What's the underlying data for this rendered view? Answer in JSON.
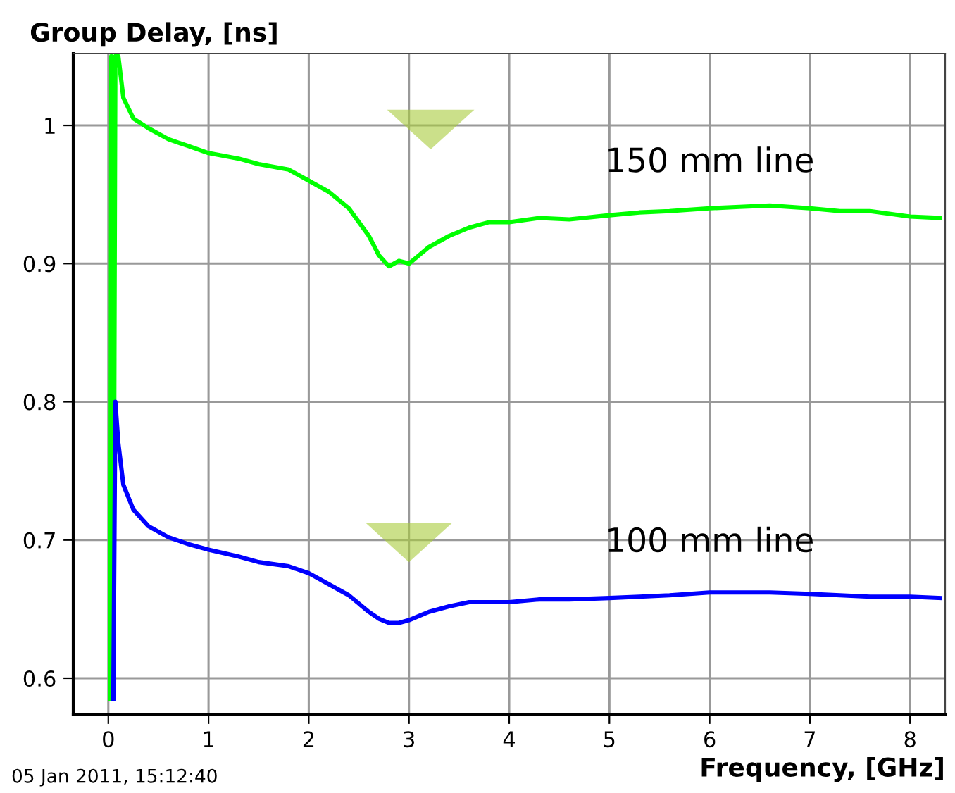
{
  "chart_data": {
    "type": "line",
    "xlabel": "Frequency, [GHz]",
    "ylabel": "Group Delay, [ns]",
    "annotations": [
      "05 Jan 2011, 15:12:40"
    ],
    "xlim": [
      -0.35,
      8.35
    ],
    "ylim": [
      0.574,
      1.052
    ],
    "xticks": [
      0,
      1,
      2,
      3,
      4,
      5,
      6,
      7,
      8
    ],
    "yticks": [
      0.6,
      0.7,
      0.8,
      0.9,
      1
    ],
    "grid": true,
    "legend": false,
    "marker": "none",
    "line_style": "solid",
    "series": [
      {
        "name": "150 mm line",
        "color": "#00ff00",
        "x": [
          0.02,
          0.03,
          0.05,
          0.07,
          0.1,
          0.15,
          0.25,
          0.4,
          0.6,
          0.8,
          1.0,
          1.3,
          1.5,
          1.8,
          2.0,
          2.2,
          2.4,
          2.5,
          2.6,
          2.7,
          2.8,
          2.9,
          3.0,
          3.1,
          3.2,
          3.4,
          3.6,
          3.8,
          4.0,
          4.3,
          4.6,
          5.0,
          5.3,
          5.6,
          6.0,
          6.3,
          6.6,
          7.0,
          7.3,
          7.6,
          8.0,
          8.3
        ],
        "values": [
          0.585,
          1.05,
          0.585,
          1.05,
          1.05,
          1.02,
          1.005,
          0.998,
          0.99,
          0.985,
          0.98,
          0.976,
          0.972,
          0.968,
          0.96,
          0.952,
          0.94,
          0.93,
          0.92,
          0.906,
          0.898,
          0.902,
          0.9,
          0.906,
          0.912,
          0.92,
          0.926,
          0.93,
          0.93,
          0.933,
          0.932,
          0.935,
          0.937,
          0.938,
          0.94,
          0.941,
          0.942,
          0.94,
          0.938,
          0.938,
          0.934,
          0.933
        ]
      },
      {
        "name": "100 mm line",
        "color": "#0000ff",
        "x": [
          0.05,
          0.07,
          0.1,
          0.15,
          0.25,
          0.4,
          0.6,
          0.8,
          1.0,
          1.3,
          1.5,
          1.8,
          2.0,
          2.2,
          2.4,
          2.5,
          2.6,
          2.7,
          2.8,
          2.9,
          3.0,
          3.1,
          3.2,
          3.4,
          3.6,
          3.8,
          4.0,
          4.3,
          4.6,
          5.0,
          5.3,
          5.6,
          6.0,
          6.3,
          6.6,
          7.0,
          7.3,
          7.6,
          8.0,
          8.3
        ],
        "values": [
          0.585,
          0.8,
          0.77,
          0.74,
          0.722,
          0.71,
          0.702,
          0.697,
          0.693,
          0.688,
          0.684,
          0.681,
          0.676,
          0.668,
          0.66,
          0.654,
          0.648,
          0.643,
          0.64,
          0.64,
          0.642,
          0.645,
          0.648,
          0.652,
          0.655,
          0.655,
          0.655,
          0.657,
          0.657,
          0.658,
          0.659,
          0.66,
          0.662,
          0.662,
          0.662,
          0.661,
          0.66,
          0.659,
          0.659,
          0.658
        ]
      }
    ]
  }
}
